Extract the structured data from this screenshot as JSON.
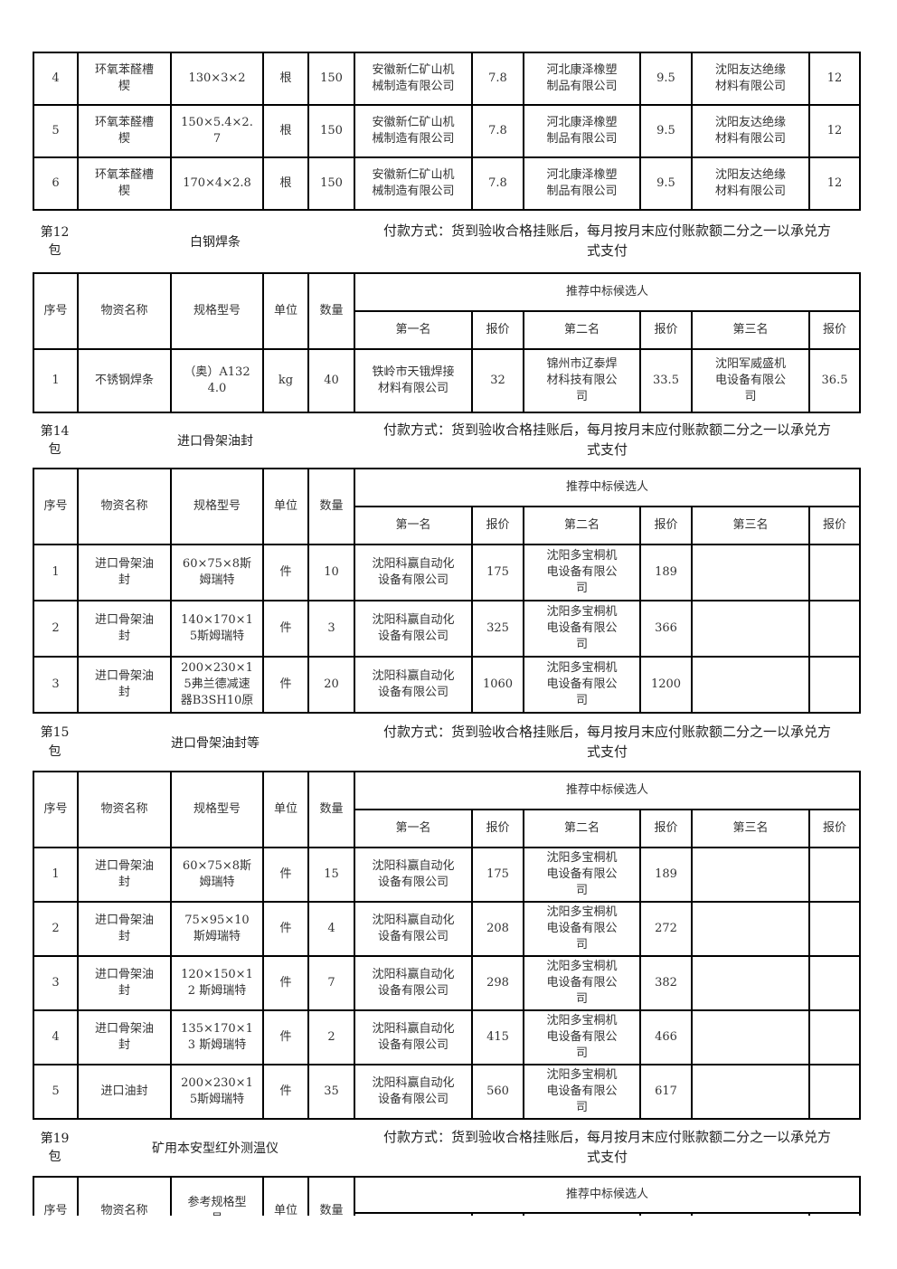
{
  "columns": {
    "seq": "序号",
    "name": "物资名称",
    "spec": "规格型号",
    "unit": "单位",
    "qty": "数量",
    "candidates": "推荐中标候选人",
    "first": "第一名",
    "second": "第二名",
    "third": "第三名",
    "price": "报价"
  },
  "payment_text": "付款方式：货到验收合格挂账后，每月按月末应付账款额二分之一以承兑方式支付",
  "colors": {
    "border": "#000000",
    "text": "#333333",
    "background": "#ffffff"
  },
  "top_table": {
    "rows": [
      {
        "seq": "4",
        "name": "环氧苯醛槽楔",
        "spec": "130×3×2",
        "unit": "根",
        "qty": "150",
        "first": "安徽新仁矿山机械制造有限公司",
        "p1": "7.8",
        "second": "河北康泽橡塑制品有限公司",
        "p2": "9.5",
        "third": "沈阳友达绝缘材料有限公司",
        "p3": "12"
      },
      {
        "seq": "5",
        "name": "环氧苯醛槽楔",
        "spec": "150×5.4×2.7",
        "unit": "根",
        "qty": "150",
        "first": "安徽新仁矿山机械制造有限公司",
        "p1": "7.8",
        "second": "河北康泽橡塑制品有限公司",
        "p2": "9.5",
        "third": "沈阳友达绝缘材料有限公司",
        "p3": "12"
      },
      {
        "seq": "6",
        "name": "环氧苯醛槽楔",
        "spec": "170×4×2.8",
        "unit": "根",
        "qty": "150",
        "first": "安徽新仁矿山机械制造有限公司",
        "p1": "7.8",
        "second": "河北康泽橡塑制品有限公司",
        "p2": "9.5",
        "third": "沈阳友达绝缘材料有限公司",
        "p3": "12"
      }
    ]
  },
  "sections": [
    {
      "pkg_line1": "第12",
      "pkg_line2": "包",
      "title": "白钢焊条",
      "spec_col": "规格型号",
      "rows": [
        {
          "seq": "1",
          "name": "不锈钢焊条",
          "spec": "（奥）A132 4.0",
          "unit": "kg",
          "qty": "40",
          "first": "铁岭市天锇焊接材料有限公司",
          "p1": "32",
          "second": "锦州市辽泰焊材科技有限公司",
          "p2": "33.5",
          "third": "沈阳军威盛机电设备有限公司",
          "p3": "36.5"
        }
      ]
    },
    {
      "pkg_line1": "第14",
      "pkg_line2": "包",
      "title": "进口骨架油封",
      "spec_col": "规格型号",
      "rows": [
        {
          "seq": "1",
          "name": "进口骨架油封",
          "spec": "60×75×8斯姆瑞特",
          "unit": "件",
          "qty": "10",
          "first": "沈阳科赢自动化设备有限公司",
          "p1": "175",
          "second": "沈阳多宝桐机电设备有限公司",
          "p2": "189",
          "third": "",
          "p3": ""
        },
        {
          "seq": "2",
          "name": "进口骨架油封",
          "spec": "140×170×15斯姆瑞特",
          "unit": "件",
          "qty": "3",
          "first": "沈阳科赢自动化设备有限公司",
          "p1": "325",
          "second": "沈阳多宝桐机电设备有限公司",
          "p2": "366",
          "third": "",
          "p3": ""
        },
        {
          "seq": "3",
          "name": "进口骨架油封",
          "spec": "200×230×15弗兰德减速器B3SH10原",
          "unit": "件",
          "qty": "20",
          "first": "沈阳科赢自动化设备有限公司",
          "p1": "1060",
          "second": "沈阳多宝桐机电设备有限公司",
          "p2": "1200",
          "third": "",
          "p3": ""
        }
      ]
    },
    {
      "pkg_line1": "第15",
      "pkg_line2": "包",
      "title": "进口骨架油封等",
      "spec_col": "规格型号",
      "rows": [
        {
          "seq": "1",
          "name": "进口骨架油封",
          "spec": "60×75×8斯姆瑞特",
          "unit": "件",
          "qty": "15",
          "first": "沈阳科赢自动化设备有限公司",
          "p1": "175",
          "second": "沈阳多宝桐机电设备有限公司",
          "p2": "189",
          "third": "",
          "p3": ""
        },
        {
          "seq": "2",
          "name": "进口骨架油封",
          "spec": "75×95×10斯姆瑞特",
          "unit": "件",
          "qty": "4",
          "first": "沈阳科赢自动化设备有限公司",
          "p1": "208",
          "second": "沈阳多宝桐机电设备有限公司",
          "p2": "272",
          "third": "",
          "p3": ""
        },
        {
          "seq": "3",
          "name": "进口骨架油封",
          "spec": "120×150×12 斯姆瑞特",
          "unit": "件",
          "qty": "7",
          "first": "沈阳科赢自动化设备有限公司",
          "p1": "298",
          "second": "沈阳多宝桐机电设备有限公司",
          "p2": "382",
          "third": "",
          "p3": ""
        },
        {
          "seq": "4",
          "name": "进口骨架油封",
          "spec": "135×170×13 斯姆瑞特",
          "unit": "件",
          "qty": "2",
          "first": "沈阳科赢自动化设备有限公司",
          "p1": "415",
          "second": "沈阳多宝桐机电设备有限公司",
          "p2": "466",
          "third": "",
          "p3": ""
        },
        {
          "seq": "5",
          "name": "进口油封",
          "spec": "200×230×15斯姆瑞特",
          "unit": "件",
          "qty": "35",
          "first": "沈阳科赢自动化设备有限公司",
          "p1": "560",
          "second": "沈阳多宝桐机电设备有限公司",
          "p2": "617",
          "third": "",
          "p3": ""
        }
      ]
    },
    {
      "pkg_line1": "第19",
      "pkg_line2": "包",
      "title": "矿用本安型红外测温仪",
      "spec_col": "参考规格型号",
      "rows": []
    }
  ]
}
